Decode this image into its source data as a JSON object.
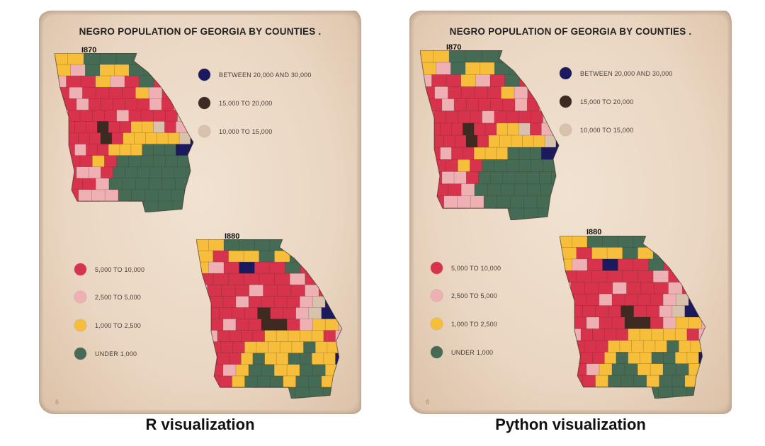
{
  "title": "NEGRO POPULATION OF GEORGIA BY COUNTIES .",
  "years": [
    "I870",
    "I880"
  ],
  "legend_top": [
    {
      "label": "BETWEEN 20,000 AND 30,000",
      "color": "#1c1a5e"
    },
    {
      "label": "15,000 TO 20,000",
      "color": "#3e2a20"
    },
    {
      "label": "10,000 TO 15,000",
      "color": "#d8c1ad"
    }
  ],
  "legend_bottom": [
    {
      "label": "5,000 TO 10,000",
      "color": "#d8334c"
    },
    {
      "label": "2,500 TO 5,000",
      "color": "#efb0b4"
    },
    {
      "label": "1,000 TO 2,500",
      "color": "#f6be3a"
    },
    {
      "label": "UNDER 1,000",
      "color": "#456b55"
    }
  ],
  "page_number": "6",
  "captions": {
    "left": "R visualization",
    "right": "Python visualization"
  },
  "map_colors": {
    "green": "#456b55",
    "red": "#d8334c",
    "pink": "#efb0b4",
    "yellow": "#f6be3a",
    "tan": "#d8c1ad",
    "brown": "#3e2a20",
    "navy": "#1c1a5e"
  }
}
